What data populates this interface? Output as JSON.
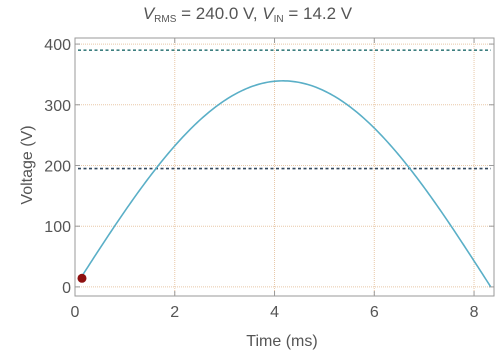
{
  "chart_data": {
    "type": "line",
    "title": {
      "v1": "V",
      "v1_sub": "RMS",
      "v1_value": " = 240.0 V, ",
      "v2": "V",
      "v2_sub": "IN",
      "v2_value": " = 14.2 V"
    },
    "xlabel": "Time (ms)",
    "ylabel": "Voltage (V)",
    "xlim": [
      0,
      8.4
    ],
    "ylim": [
      -15,
      410
    ],
    "x_ticks": [
      0,
      2,
      4,
      6,
      8
    ],
    "y_ticks": [
      0,
      100,
      200,
      300,
      400
    ],
    "grid": true,
    "series": [
      {
        "type": "rectified-sine",
        "amplitude": 339.4,
        "period_ms": 16.67,
        "x_start": 0.1,
        "x_end": 8.33,
        "color": "#5aafc7"
      }
    ],
    "reference_lines": [
      {
        "y": 390,
        "color": "#3e7f80",
        "style": "dotted"
      },
      {
        "y": 195,
        "color": "#34495e",
        "style": "dotted"
      }
    ],
    "marker": {
      "x": 0.14,
      "y": 14.2,
      "color": "#8e1010"
    }
  }
}
